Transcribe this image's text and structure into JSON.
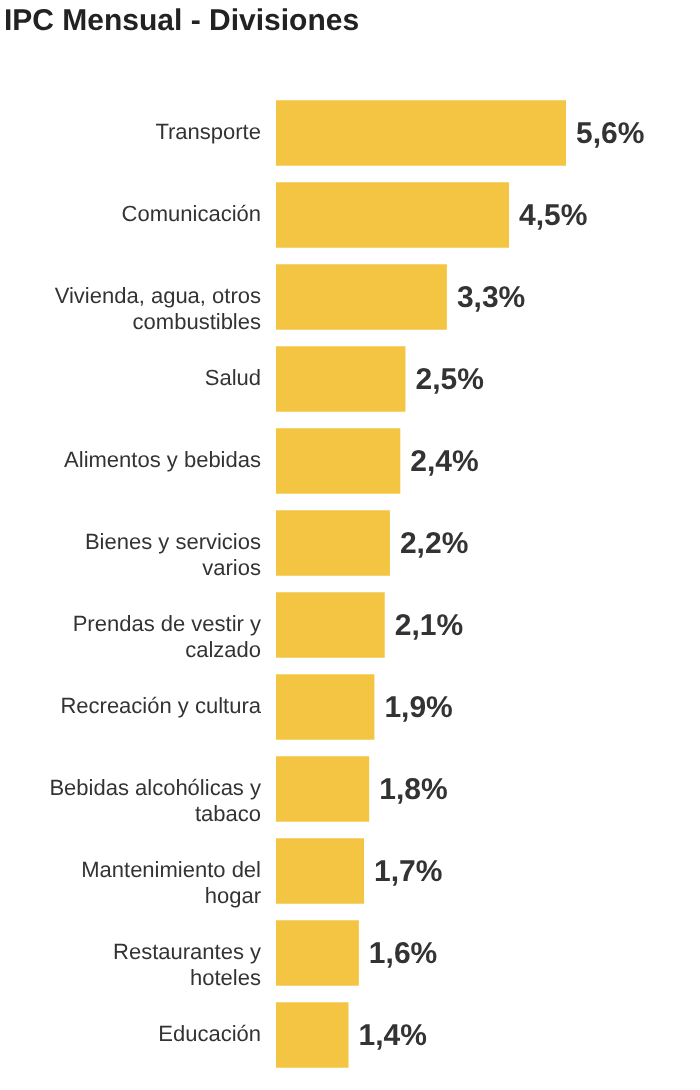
{
  "chart_data": {
    "type": "bar",
    "title": "IPC Mensual - Divisiones",
    "orientation": "horizontal",
    "categories": [
      "Transporte",
      "Comunicación",
      "Vivienda, agua, otros combustibles",
      "Salud",
      "Alimentos y bebidas",
      "Bienes y servicios varios",
      "Prendas de vestir y calzado",
      "Recreación y cultura",
      "Bebidas alcohólicas y tabaco",
      "Mantenimiento del hogar",
      "Restaurantes y hoteles",
      "Educación"
    ],
    "values": [
      5.6,
      4.5,
      3.3,
      2.5,
      2.4,
      2.2,
      2.1,
      1.9,
      1.8,
      1.7,
      1.6,
      1.4
    ],
    "value_labels": [
      "5,6%",
      "4,5%",
      "3,3%",
      "2,5%",
      "2,4%",
      "2,2%",
      "2,1%",
      "1,9%",
      "1,8%",
      "1,7%",
      "1,6%",
      "1,4%"
    ],
    "color": "#f4c542"
  }
}
